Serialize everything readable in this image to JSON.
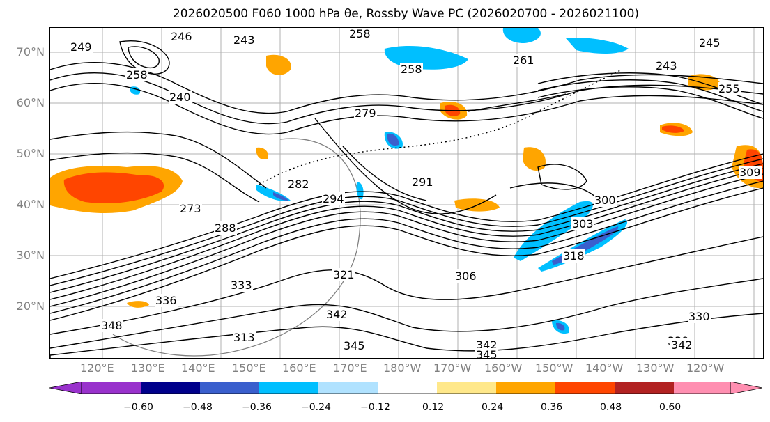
{
  "title": "2026020500 F060 1000 hPa θe, Rossby Wave PC (2026020700 - 2026021100)",
  "lat_labels": [
    "70°N",
    "60°N",
    "50°N",
    "40°N",
    "30°N",
    "20°N"
  ],
  "lon_labels": [
    "120°E",
    "130°E",
    "140°E",
    "150°E",
    "160°E",
    "170°E",
    "180°W",
    "170°W",
    "160°W",
    "150°W",
    "140°W",
    "130°W",
    "120°W"
  ],
  "contour_labels": [
    "246",
    "243",
    "258",
    "249",
    "258",
    "279",
    "291",
    "282",
    "294",
    "273",
    "288",
    "300",
    "303",
    "306",
    "321",
    "333",
    "336",
    "342",
    "345",
    "348",
    "342",
    "345",
    "330",
    "339",
    "342",
    "318",
    "309",
    "255",
    "243",
    "258",
    "245",
    "261",
    "240",
    "313"
  ],
  "colorbar": {
    "ticks": [
      "−0.60",
      "−0.48",
      "−0.36",
      "−0.24",
      "−0.12",
      "0.12",
      "0.24",
      "0.36",
      "0.48",
      "0.60"
    ],
    "colors": [
      "#9932cc",
      "#00008b",
      "#3a5fcd",
      "#00bfff",
      "#b0e2ff",
      "#ffffff",
      "#ffe88a",
      "#ffa500",
      "#ff4500",
      "#b22222",
      "#ff8fb1"
    ]
  }
}
